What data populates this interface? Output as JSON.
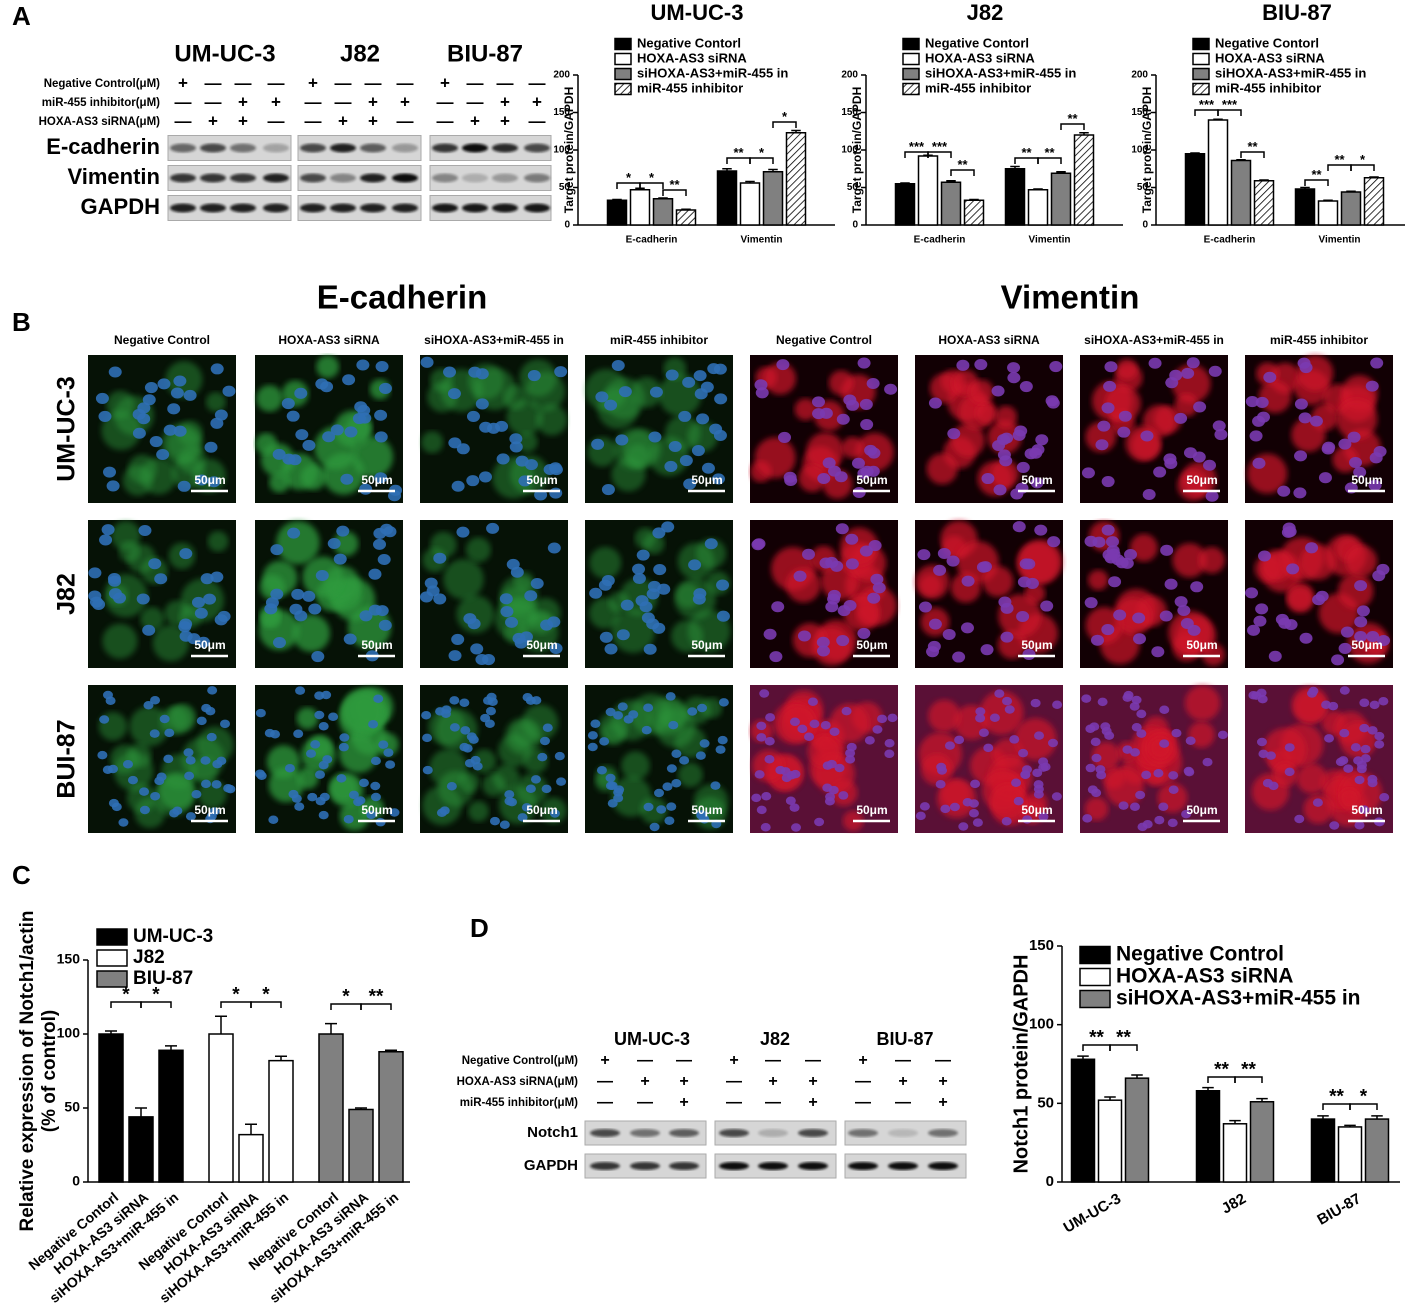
{
  "panel_labels": [
    "A",
    "B",
    "C",
    "D"
  ],
  "blot_a": {
    "cell_lines": [
      "UM-UC-3",
      "J82",
      "BIU-87"
    ],
    "conditions": [
      {
        "label": "Negative Control(μM)",
        "signs": [
          "+",
          "—",
          "—",
          "—",
          "+",
          "—",
          "—",
          "—",
          "+",
          "—",
          "—",
          "—"
        ]
      },
      {
        "label": "miR-455 inhibitor(μM)",
        "signs": [
          "—",
          "—",
          "+",
          "+",
          "—",
          "—",
          "+",
          "+",
          "—",
          "—",
          "+",
          "+"
        ]
      },
      {
        "label": "HOXA-AS3 siRNA(μM)",
        "signs": [
          "—",
          "+",
          "+",
          "—",
          "—",
          "+",
          "+",
          "—",
          "—",
          "+",
          "+",
          "—"
        ]
      }
    ],
    "proteins": [
      "E-cadherin",
      "Vimentin",
      "GAPDH"
    ]
  },
  "if_panel": {
    "markers": [
      "E-cadherin",
      "Vimentin"
    ],
    "columns": [
      "Negative Control",
      "HOXA-AS3 siRNA",
      "siHOXA-AS3+miR-455 in",
      "miR-455 inhibitor",
      "Negative Control",
      "HOXA-AS3 siRNA",
      "siHOXA-AS3+miR-455 in",
      "miR-455 inhibitor"
    ],
    "cell_lines": [
      "UM-UC-3",
      "J82",
      "BUI-87"
    ],
    "scale_bar": "50μm"
  },
  "blot_d": {
    "cell_lines": [
      "UM-UC-3",
      "J82",
      "BIU-87"
    ],
    "conditions": [
      {
        "label": "Negative Control(μM)",
        "signs": [
          "+",
          "—",
          "—",
          "+",
          "—",
          "—",
          "+",
          "—",
          "—"
        ]
      },
      {
        "label": "HOXA-AS3 siRNA(μM)",
        "signs": [
          "—",
          "+",
          "+",
          "—",
          "+",
          "+",
          "—",
          "+",
          "+"
        ]
      },
      {
        "label": "miR-455 inhibitor(μM)",
        "signs": [
          "—",
          "—",
          "+",
          "—",
          "—",
          "+",
          "—",
          "—",
          "+"
        ]
      }
    ],
    "proteins": [
      "Notch1",
      "GAPDH"
    ]
  },
  "chart_data": [
    {
      "type": "bar",
      "title": "UM-UC-3",
      "ylabel": "Target protein/GAPDH",
      "categories": [
        "E-cadherin",
        "Vimentin"
      ],
      "series": [
        {
          "name": "Negative Contorl",
          "color": "#000000",
          "values": [
            33,
            72
          ],
          "errors": [
            1,
            3
          ]
        },
        {
          "name": "HOXA-AS3 siRNA",
          "color": "#ffffff",
          "values": [
            47,
            56
          ],
          "errors": [
            2,
            2
          ]
        },
        {
          "name": "siHOXA-AS3+miR-455 in",
          "color": "#808080",
          "values": [
            35,
            71
          ],
          "errors": [
            1,
            3
          ]
        },
        {
          "name": "miR-455 inhibitor",
          "color": "#ffffff",
          "pattern": "hatch",
          "values": [
            20,
            123
          ],
          "errors": [
            1,
            3
          ]
        }
      ],
      "ylim": [
        0,
        200
      ],
      "yticks": [
        0,
        50,
        100,
        150,
        200
      ],
      "annotations": [
        "*",
        "*",
        "**",
        "**",
        "*",
        "*"
      ]
    },
    {
      "type": "bar",
      "title": "J82",
      "ylabel": "Target protein/GAPDH",
      "categories": [
        "E-cadherin",
        "Vimentin"
      ],
      "series": [
        {
          "name": "Negative Contorl",
          "color": "#000000",
          "values": [
            55,
            75
          ],
          "errors": [
            1,
            3
          ]
        },
        {
          "name": "HOXA-AS3 siRNA",
          "color": "#ffffff",
          "values": [
            92,
            47
          ],
          "errors": [
            1,
            1
          ]
        },
        {
          "name": "siHOXA-AS3+miR-455 in",
          "color": "#808080",
          "values": [
            57,
            69
          ],
          "errors": [
            2,
            2
          ]
        },
        {
          "name": "miR-455 inhibitor",
          "color": "#ffffff",
          "pattern": "hatch",
          "values": [
            33,
            120
          ],
          "errors": [
            1,
            3
          ]
        }
      ],
      "ylim": [
        0,
        200
      ],
      "yticks": [
        0,
        50,
        100,
        150,
        200
      ],
      "annotations": [
        "***",
        "***",
        "**",
        "**",
        "**",
        "**"
      ]
    },
    {
      "type": "bar",
      "title": "BIU-87",
      "ylabel": "Target protein/GAPDH",
      "categories": [
        "E-cadherin",
        "Vimentin"
      ],
      "series": [
        {
          "name": "Negative Contorl",
          "color": "#000000",
          "values": [
            95,
            48
          ],
          "errors": [
            1,
            2
          ]
        },
        {
          "name": "HOXA-AS3 siRNA",
          "color": "#ffffff",
          "values": [
            140,
            32
          ],
          "errors": [
            1,
            1
          ]
        },
        {
          "name": "siHOXA-AS3+miR-455 in",
          "color": "#808080",
          "values": [
            86,
            44
          ],
          "errors": [
            1,
            1
          ]
        },
        {
          "name": "miR-455 inhibitor",
          "color": "#ffffff",
          "pattern": "hatch",
          "values": [
            59,
            63
          ],
          "errors": [
            1,
            1
          ]
        }
      ],
      "ylim": [
        0,
        200
      ],
      "yticks": [
        0,
        50,
        100,
        150,
        200
      ],
      "annotations": [
        "***",
        "***",
        "**",
        "**",
        "**",
        "*"
      ]
    },
    {
      "type": "bar",
      "ylabel": [
        "Relative expression of Notch1/actin",
        "(% of control)"
      ],
      "categories": [
        "Negative Contorl",
        "HOXA-AS3 siRNA",
        "siHOXA-AS3+miR-455 in"
      ],
      "series": [
        {
          "name": "UM-UC-3",
          "color": "#000000",
          "values": [
            100,
            44,
            89
          ],
          "errors": [
            2,
            6,
            3
          ]
        },
        {
          "name": "J82",
          "color": "#ffffff",
          "values": [
            100,
            32,
            82
          ],
          "errors": [
            12,
            7,
            3
          ]
        },
        {
          "name": "BIU-87",
          "color": "#808080",
          "values": [
            100,
            49,
            88
          ],
          "errors": [
            7,
            1,
            1
          ]
        }
      ],
      "ylim": [
        0,
        150
      ],
      "yticks": [
        0,
        50,
        100,
        150
      ],
      "annotations": [
        "*",
        "*",
        "*",
        "*",
        "*",
        "**"
      ]
    },
    {
      "type": "bar",
      "ylabel": "Notch1 protein/GAPDH",
      "categories": [
        "UM-UC-3",
        "J82",
        "BIU-87"
      ],
      "series": [
        {
          "name": "Negative Control",
          "color": "#000000",
          "values": [
            78,
            58,
            40
          ],
          "errors": [
            2,
            2,
            2
          ]
        },
        {
          "name": "HOXA-AS3 siRNA",
          "color": "#ffffff",
          "values": [
            52,
            37,
            35
          ],
          "errors": [
            2,
            2,
            1
          ]
        },
        {
          "name": "siHOXA-AS3+miR-455 in",
          "color": "#808080",
          "values": [
            66,
            51,
            40
          ],
          "errors": [
            2,
            2,
            2
          ]
        }
      ],
      "ylim": [
        0,
        150
      ],
      "yticks": [
        0,
        50,
        100,
        150
      ],
      "annotations": [
        "**",
        "**",
        "**",
        "**",
        "**",
        "*"
      ]
    }
  ]
}
